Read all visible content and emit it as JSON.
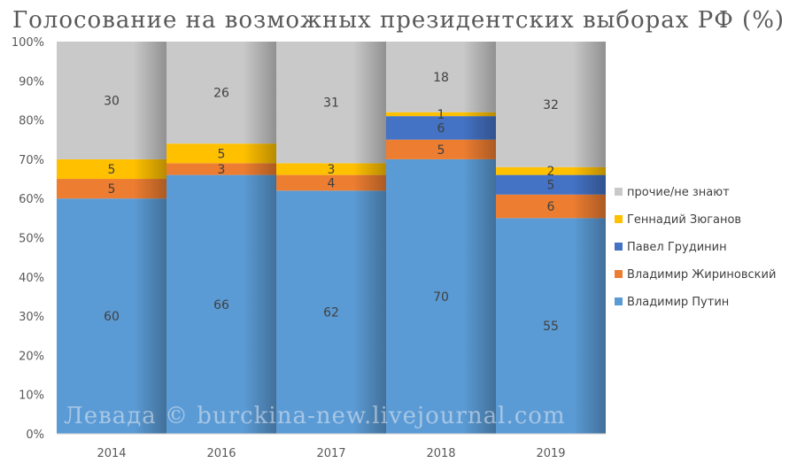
{
  "chart_data": {
    "type": "bar",
    "stacked": true,
    "title": "Голосование на возможных президентских выборах РФ (%)",
    "categories": [
      "2014",
      "2016",
      "2017",
      "2018",
      "2019"
    ],
    "ylim": [
      0,
      100
    ],
    "y_ticks": [
      "0%",
      "10%",
      "20%",
      "30%",
      "40%",
      "50%",
      "60%",
      "70%",
      "80%",
      "90%",
      "100%"
    ],
    "legend_position": "right",
    "grid": false,
    "series": [
      {
        "name": "Владимир Путин",
        "color": "#5b9bd5",
        "values": [
          60,
          66,
          62,
          70,
          55
        ]
      },
      {
        "name": "Владимир Жириновский",
        "color": "#ed7d31",
        "values": [
          5,
          3,
          4,
          5,
          6
        ]
      },
      {
        "name": "Павел Грудинин",
        "color": "#4472c4",
        "values": [
          null,
          null,
          null,
          6,
          5
        ]
      },
      {
        "name": "Геннадий Зюганов",
        "color": "#ffc000",
        "values": [
          5,
          5,
          3,
          1,
          2
        ]
      },
      {
        "name": "прочие/не знают",
        "color": "#c9c9c9",
        "values": [
          30,
          26,
          31,
          18,
          32
        ]
      }
    ],
    "watermark": "Левада © burckina-new.livejournal.com"
  }
}
